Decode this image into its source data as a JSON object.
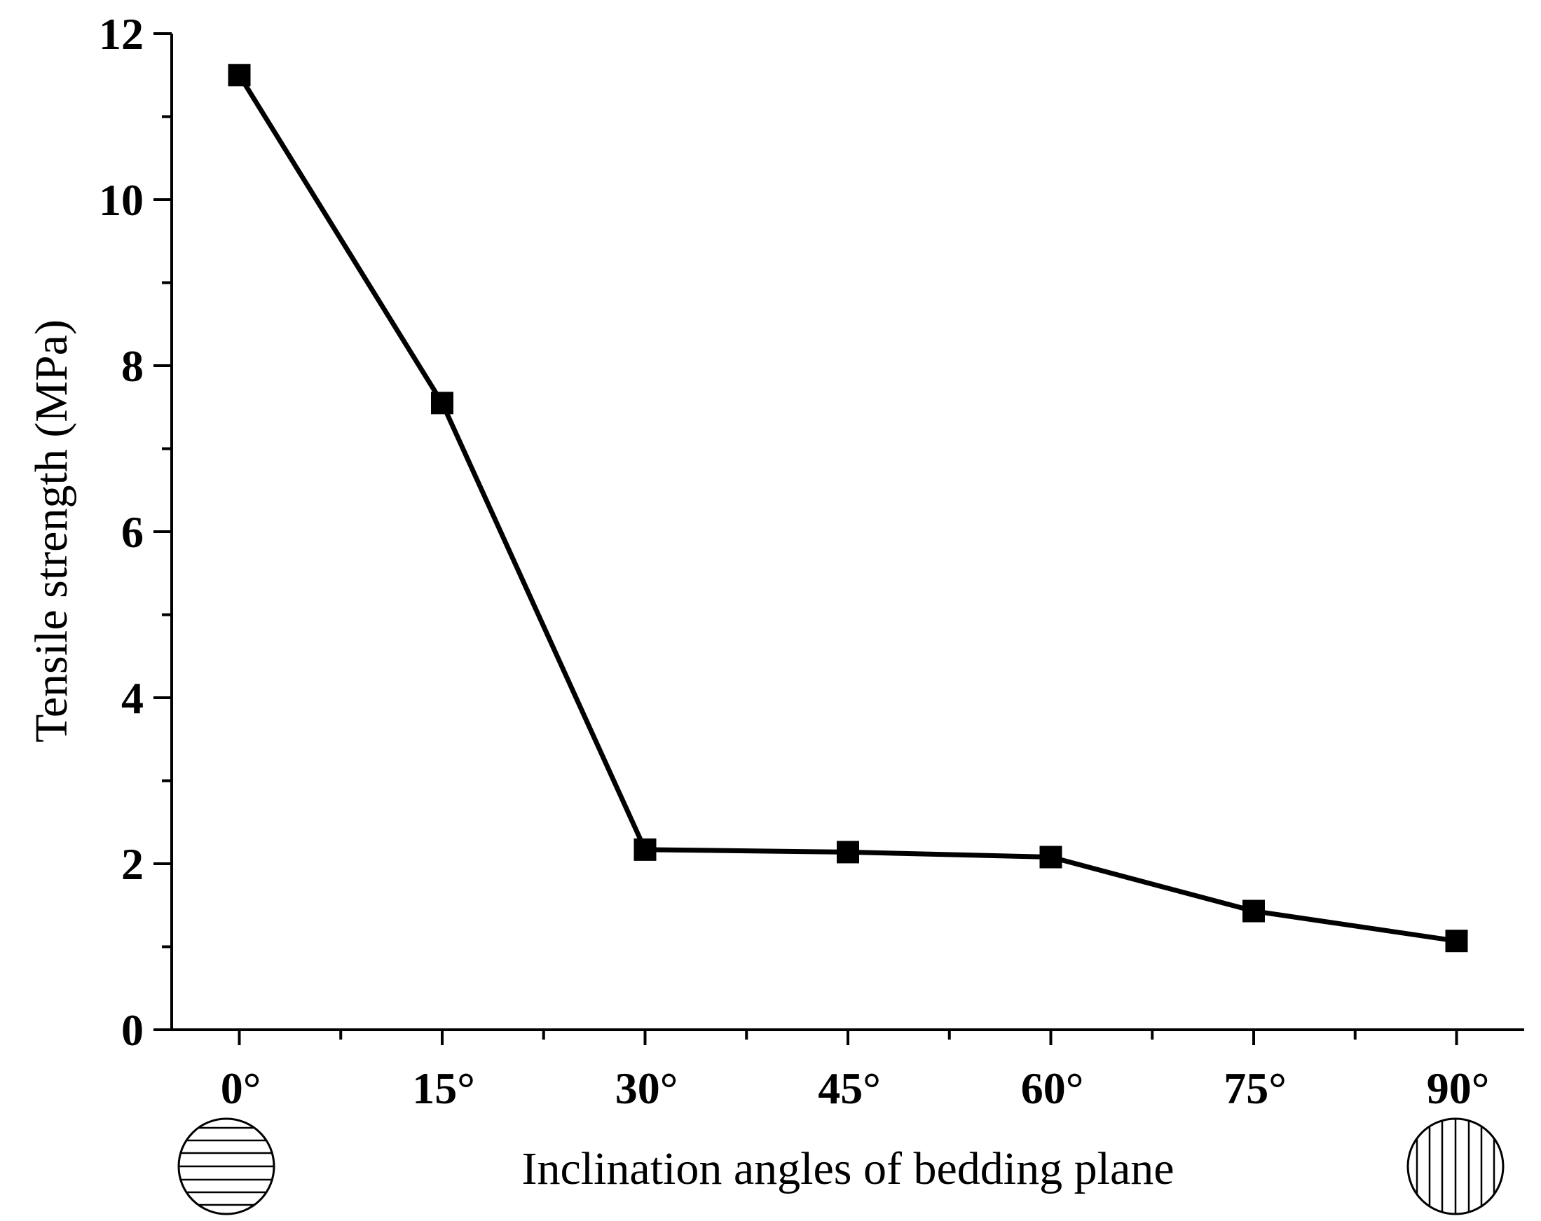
{
  "chart_data": {
    "type": "line",
    "xlabel": "Inclination angles of bedding plane",
    "ylabel": "Tensile strength (MPa)",
    "categories": [
      "0°",
      "15°",
      "30°",
      "45°",
      "60°",
      "75°",
      "90°"
    ],
    "x": [
      0,
      15,
      30,
      45,
      60,
      75,
      90
    ],
    "series": [
      {
        "values": [
          11.5,
          7.55,
          2.17,
          2.14,
          2.08,
          1.43,
          1.07
        ]
      }
    ],
    "ylim": [
      0,
      12
    ],
    "xlim": [
      -5,
      95
    ],
    "yticks": [
      0,
      2,
      4,
      6,
      8,
      10,
      12
    ],
    "grid": false,
    "marker": "square",
    "line_color": "#000000",
    "icons": {
      "start": "horizontal-bedding-icon",
      "end": "vertical-bedding-icon"
    }
  }
}
